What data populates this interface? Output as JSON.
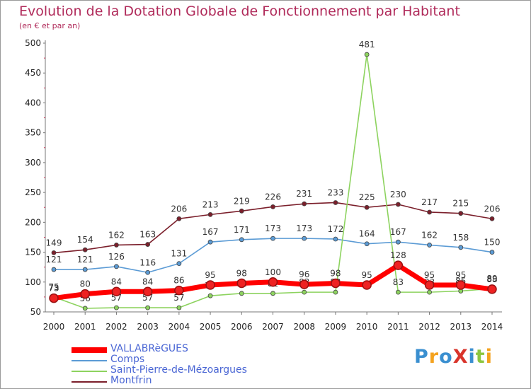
{
  "title": "Evolution de la Dotation Globale de Fonctionnement par Habitant",
  "subtitle": "(en € et par an)",
  "logo": {
    "text": "ProXiti",
    "colors": [
      "#3a8fd0",
      "#f4a21e",
      "#3a8fd0",
      "#d9342b",
      "#3a8fd0",
      "#8cc63f",
      "#f4a21e"
    ]
  },
  "chart_data": {
    "type": "line",
    "title": "Evolution de la Dotation Globale de Fonctionnement par Habitant",
    "subtitle": "(en € et par an)",
    "x": [
      "2000",
      "2001",
      "2002",
      "2003",
      "2004",
      "2005",
      "2006",
      "2007",
      "2008",
      "2009",
      "2010",
      "2011",
      "2012",
      "2013",
      "2014"
    ],
    "ylim": [
      50,
      500
    ],
    "yticks": [
      50,
      100,
      150,
      200,
      250,
      300,
      350,
      400,
      450,
      500
    ],
    "grid": false,
    "legend": "bottom-left",
    "series": [
      {
        "name": "Montfrin",
        "color": "#7b1f2b",
        "values": [
          149,
          154,
          162,
          163,
          206,
          213,
          219,
          226,
          231,
          233,
          225,
          230,
          217,
          215,
          206
        ]
      },
      {
        "name": "Comps",
        "color": "#5b9bd5",
        "values": [
          121,
          121,
          126,
          116,
          131,
          167,
          171,
          173,
          173,
          172,
          164,
          167,
          162,
          158,
          150
        ]
      },
      {
        "name": "Saint-Pierre-de-Mézoargues",
        "color": "#8dd35f",
        "values": [
          75,
          56,
          57,
          57,
          57,
          77,
          81,
          81,
          83,
          83,
          481,
          83,
          83,
          85,
          89
        ]
      },
      {
        "name": "VALLABRèGUES",
        "color": "#ff0000",
        "values": [
          73,
          80,
          84,
          84,
          86,
          95,
          98,
          100,
          96,
          98,
          95,
          128,
          95,
          95,
          88
        ]
      }
    ]
  }
}
